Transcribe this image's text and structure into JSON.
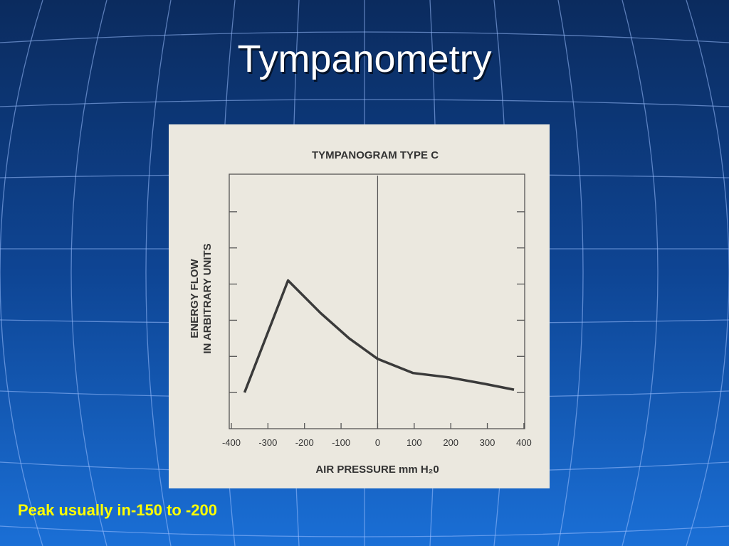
{
  "slide": {
    "title": "Tympanometry",
    "caption": "Peak usually in-150 to -200"
  },
  "chart_data": {
    "type": "line",
    "title": "TYMPANOGRAM TYPE C",
    "ylabel": [
      "ENERGY FLOW",
      "IN ARBITRARY UNITS"
    ],
    "xlabel": "AIR PRESSURE mm H₂0",
    "x": [
      -364,
      -245,
      -156,
      -78,
      0,
      97,
      195,
      292,
      373
    ],
    "values": [
      1.0,
      4.1,
      3.2,
      2.5,
      1.93,
      1.54,
      1.42,
      1.24,
      1.08
    ],
    "color": "#3a3a3a",
    "xlim": [
      -400,
      408
    ],
    "xticks": [
      -400,
      -300,
      -200,
      -100,
      0,
      100,
      200,
      300,
      400
    ],
    "ylim": [
      0,
      7
    ],
    "yticks": [
      1,
      2,
      3,
      4,
      5,
      6
    ],
    "vline": 0
  }
}
